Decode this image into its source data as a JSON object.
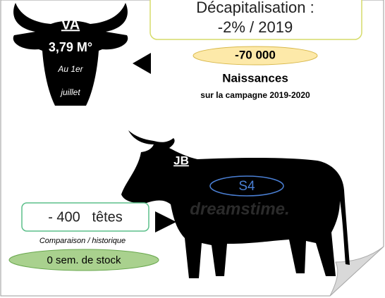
{
  "head": {
    "label": "VA",
    "value": "3,79 M°",
    "note_line1": "Au 1er",
    "note_line2": "juillet"
  },
  "decap": {
    "line1": "Décapitalisation :",
    "line2": "-2% / 2019"
  },
  "births": {
    "value": "-70 000",
    "label": "Naissances",
    "period": "sur la campagne 2019-2020"
  },
  "bull": {
    "label": "JB",
    "badge": "S4",
    "watermark": "dreamstime."
  },
  "stock": {
    "value": "- 400   têtes",
    "note": "Comparaison / historique",
    "weeks": "0 sem. de stock"
  }
}
